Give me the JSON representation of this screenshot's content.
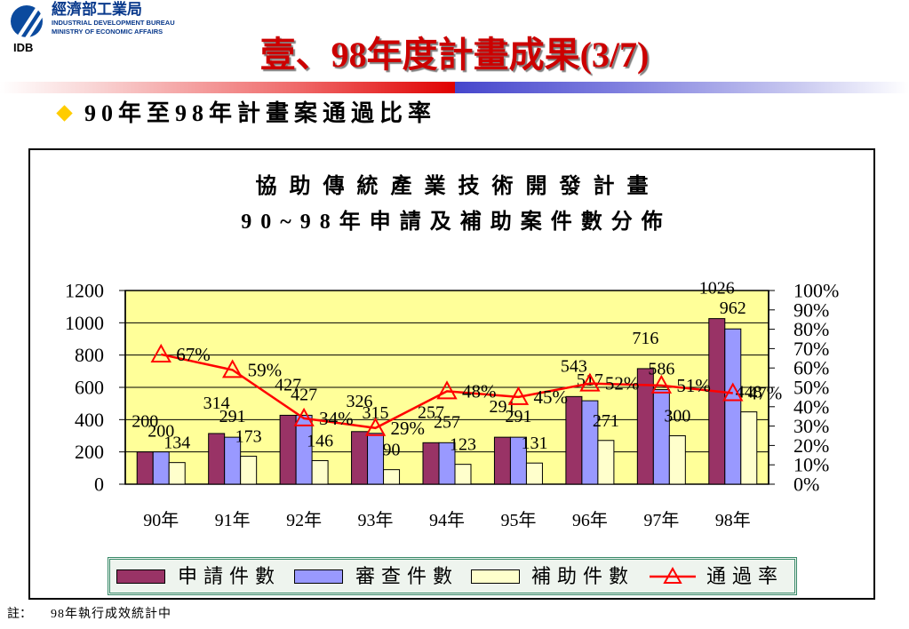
{
  "header": {
    "org_name_cn": "經濟部工業局",
    "org_name_en_1": "INDUSTRIAL DEVELOPMENT BUREAU",
    "org_name_en_2": "MINISTRY OF ECONOMIC AFFAIRS",
    "org_abbr": "IDB",
    "logo_icon": "idb-logo-icon",
    "title": "壹、98年度計畫成果(3/7)"
  },
  "bullet": {
    "icon": "diamond-bullet-icon",
    "text": "90年至98年計畫案通過比率"
  },
  "chart_data": {
    "type": "bar",
    "title": "協助傳統產業技術開發計畫",
    "subtitle": "90~98年申請及補助案件數分佈",
    "categories": [
      "90年",
      "91年",
      "92年",
      "93年",
      "94年",
      "95年",
      "96年",
      "97年",
      "98年"
    ],
    "series": [
      {
        "name": "申請件數",
        "type": "bar",
        "axis": "left",
        "color": "#993366",
        "values": [
          200,
          314,
          427,
          326,
          257,
          291,
          543,
          716,
          1026
        ]
      },
      {
        "name": "審查件數",
        "type": "bar",
        "axis": "left",
        "color": "#9999FF",
        "values": [
          200,
          291,
          427,
          315,
          257,
          291,
          517,
          586,
          962
        ]
      },
      {
        "name": "補助件數",
        "type": "bar",
        "axis": "left",
        "color": "#FFFFCC",
        "values": [
          134,
          173,
          146,
          90,
          123,
          131,
          271,
          300,
          448
        ]
      },
      {
        "name": "通過率",
        "type": "line",
        "axis": "right",
        "color": "#FF0000",
        "marker": "triangle",
        "values": [
          67,
          59,
          34,
          29,
          48,
          45,
          52,
          51,
          47
        ]
      }
    ],
    "y_left": {
      "range": [
        0,
        1200
      ],
      "ticks": [
        0,
        200,
        400,
        600,
        800,
        1000,
        1200
      ]
    },
    "y_right": {
      "range": [
        0,
        100
      ],
      "ticks": [
        0,
        10,
        20,
        30,
        40,
        50,
        60,
        70,
        80,
        90,
        100
      ],
      "suffix": "%"
    },
    "data_labels": true,
    "grid": true,
    "legend": "bottom"
  },
  "footnote": {
    "label": "註：",
    "text": "98年執行成效統計中"
  },
  "colors": {
    "title": "#CC0000",
    "org_text": "#0a3a8c",
    "logo": "#0B4A9E",
    "bullet": "#FFCC00",
    "underline_left": "#E00000",
    "underline_right": "#4646CC",
    "plot_background": "#FFFF99"
  }
}
